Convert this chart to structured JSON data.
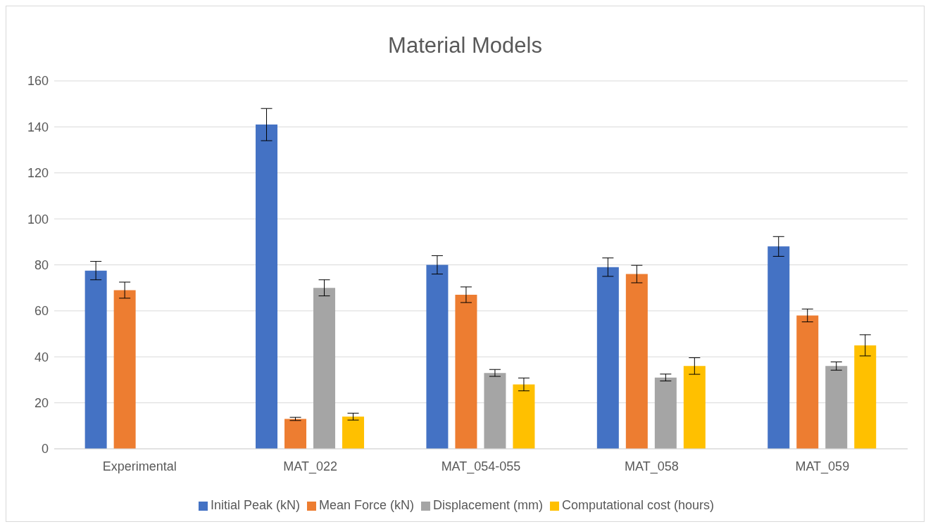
{
  "chart_data": {
    "type": "bar",
    "title": "Material Models",
    "categories": [
      "Experimental",
      "MAT_022",
      "MAT_054-055",
      "MAT_058",
      "MAT_059"
    ],
    "series": [
      {
        "name": "Initial Peak (kN)",
        "color": "#4472c4",
        "values": [
          77.5,
          141,
          80,
          79,
          88
        ],
        "errors": [
          4,
          7,
          4,
          4,
          4.3
        ]
      },
      {
        "name": "Mean Force (kN)",
        "color": "#ed7d31",
        "values": [
          69,
          13,
          67,
          76,
          58
        ],
        "errors": [
          3.5,
          0.7,
          3.4,
          3.8,
          2.8
        ]
      },
      {
        "name": "Displacement (mm)",
        "color": "#a5a5a5",
        "values": [
          null,
          70,
          33,
          31,
          36
        ],
        "errors": [
          null,
          3.5,
          1.5,
          1.5,
          1.8
        ]
      },
      {
        "name": "Computational cost (hours)",
        "color": "#ffc000",
        "values": [
          null,
          14,
          28,
          36,
          45
        ],
        "errors": [
          null,
          1.5,
          2.8,
          3.6,
          4.6
        ]
      }
    ],
    "ylim": [
      0,
      160
    ],
    "yticks": [
      0,
      20,
      40,
      60,
      80,
      100,
      120,
      140,
      160
    ],
    "grid": "y",
    "legend": "bottom"
  }
}
